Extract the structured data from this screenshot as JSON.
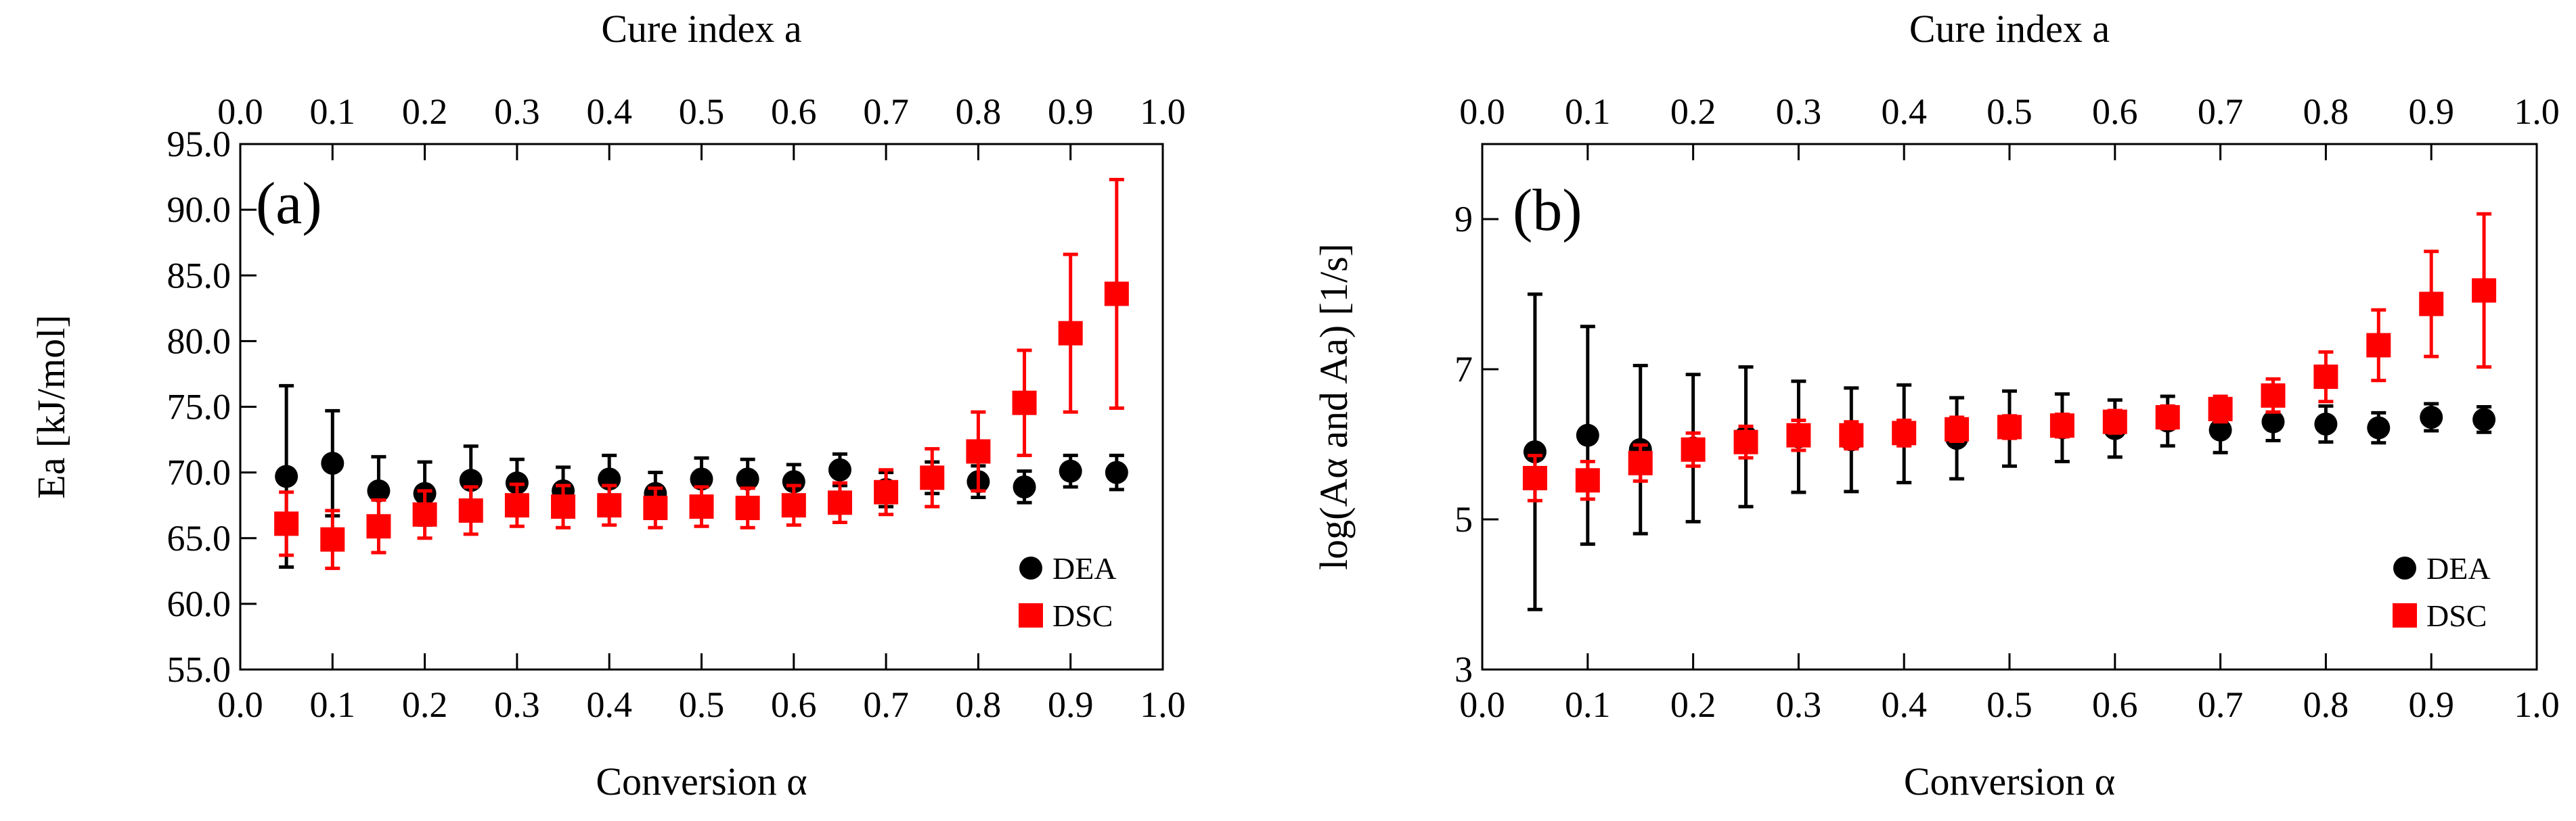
{
  "chart_data": [
    {
      "type": "scatter",
      "panel_label": "(a)",
      "xlabel": "Conversion α",
      "x2label": "Cure index a",
      "ylabel": "Ea [kJ/mol]",
      "xlim": [
        0.0,
        1.0
      ],
      "ylim": [
        55.0,
        95.0
      ],
      "xticks": [
        0.0,
        0.1,
        0.2,
        0.3,
        0.4,
        0.5,
        0.6,
        0.7,
        0.8,
        0.9,
        1.0
      ],
      "xtick_labels": [
        "0.0",
        "0.1",
        "0.2",
        "0.3",
        "0.4",
        "0.5",
        "0.6",
        "0.7",
        "0.8",
        "0.9",
        "1.0"
      ],
      "yticks": [
        55,
        60,
        65,
        70,
        75,
        80,
        85,
        90,
        95
      ],
      "ytick_labels": [
        "55.0",
        "60.0",
        "65.0",
        "70.0",
        "75.0",
        "80.0",
        "85.0",
        "90.0",
        "95.0"
      ],
      "legend_position": "bottom-right",
      "grid": false,
      "series": [
        {
          "name": "DEA",
          "marker": "circle",
          "color": "#000000",
          "x": [
            0.05,
            0.1,
            0.15,
            0.2,
            0.25,
            0.3,
            0.35,
            0.4,
            0.45,
            0.5,
            0.55,
            0.6,
            0.65,
            0.7,
            0.75,
            0.8,
            0.85,
            0.9,
            0.95
          ],
          "y": [
            69.7,
            70.7,
            68.6,
            68.4,
            69.4,
            69.2,
            68.6,
            69.5,
            68.4,
            69.5,
            69.5,
            69.3,
            70.2,
            68.7,
            69.6,
            69.3,
            68.9,
            70.1,
            70.0
          ],
          "err": [
            6.9,
            4.0,
            2.6,
            2.4,
            2.6,
            1.8,
            1.8,
            1.8,
            1.6,
            1.6,
            1.5,
            1.3,
            1.2,
            1.3,
            1.2,
            1.2,
            1.2,
            1.2,
            1.3
          ]
        },
        {
          "name": "DSC",
          "marker": "square",
          "color": "#ff0000",
          "x": [
            0.05,
            0.1,
            0.15,
            0.2,
            0.25,
            0.3,
            0.35,
            0.4,
            0.45,
            0.5,
            0.55,
            0.6,
            0.65,
            0.7,
            0.75,
            0.8,
            0.85,
            0.9,
            0.95
          ],
          "y": [
            66.1,
            64.9,
            65.9,
            66.8,
            67.1,
            67.5,
            67.4,
            67.5,
            67.3,
            67.4,
            67.3,
            67.5,
            67.7,
            68.5,
            69.6,
            71.6,
            75.3,
            80.6,
            83.6
          ],
          "err": [
            2.4,
            2.2,
            2.0,
            1.8,
            1.8,
            1.6,
            1.6,
            1.5,
            1.5,
            1.5,
            1.5,
            1.5,
            1.5,
            1.7,
            2.2,
            3.0,
            4.0,
            6.0,
            8.7
          ]
        }
      ]
    },
    {
      "type": "scatter",
      "panel_label": "(b)",
      "xlabel": "Conversion α",
      "x2label": "Cure index a",
      "ylabel": "log(Aα and Aa) [1/s]",
      "xlim": [
        0.0,
        1.0
      ],
      "ylim": [
        3,
        10
      ],
      "xticks": [
        0.0,
        0.1,
        0.2,
        0.3,
        0.4,
        0.5,
        0.6,
        0.7,
        0.8,
        0.9,
        1.0
      ],
      "xtick_labels": [
        "0.0",
        "0.1",
        "0.2",
        "0.3",
        "0.4",
        "0.5",
        "0.6",
        "0.7",
        "0.8",
        "0.9",
        "1.0"
      ],
      "yticks": [
        3,
        5,
        7,
        9
      ],
      "ytick_labels": [
        "3",
        "5",
        "7",
        "9"
      ],
      "legend_position": "bottom-right",
      "grid": false,
      "series": [
        {
          "name": "DEA",
          "marker": "circle",
          "color": "#000000",
          "x": [
            0.05,
            0.1,
            0.15,
            0.2,
            0.25,
            0.3,
            0.35,
            0.4,
            0.45,
            0.5,
            0.55,
            0.6,
            0.65,
            0.7,
            0.75,
            0.8,
            0.85,
            0.9,
            0.95
          ],
          "y": [
            5.9,
            6.12,
            5.93,
            5.95,
            6.1,
            6.1,
            6.06,
            6.14,
            6.08,
            6.21,
            6.22,
            6.21,
            6.31,
            6.19,
            6.3,
            6.27,
            6.22,
            6.36,
            6.33
          ],
          "err": [
            2.1,
            1.45,
            1.12,
            0.98,
            0.93,
            0.74,
            0.69,
            0.65,
            0.54,
            0.5,
            0.45,
            0.38,
            0.33,
            0.3,
            0.25,
            0.24,
            0.2,
            0.18,
            0.17
          ]
        },
        {
          "name": "DSC",
          "marker": "square",
          "color": "#ff0000",
          "x": [
            0.05,
            0.1,
            0.15,
            0.2,
            0.25,
            0.3,
            0.35,
            0.4,
            0.45,
            0.5,
            0.55,
            0.6,
            0.65,
            0.7,
            0.75,
            0.8,
            0.85,
            0.9,
            0.95
          ],
          "y": [
            5.55,
            5.52,
            5.75,
            5.93,
            6.03,
            6.12,
            6.12,
            6.15,
            6.2,
            6.23,
            6.25,
            6.3,
            6.36,
            6.47,
            6.65,
            6.9,
            7.32,
            7.87,
            8.05
          ],
          "err": [
            0.3,
            0.25,
            0.24,
            0.22,
            0.21,
            0.2,
            0.18,
            0.17,
            0.16,
            0.15,
            0.15,
            0.15,
            0.15,
            0.17,
            0.22,
            0.33,
            0.47,
            0.7,
            1.02
          ]
        }
      ]
    }
  ]
}
